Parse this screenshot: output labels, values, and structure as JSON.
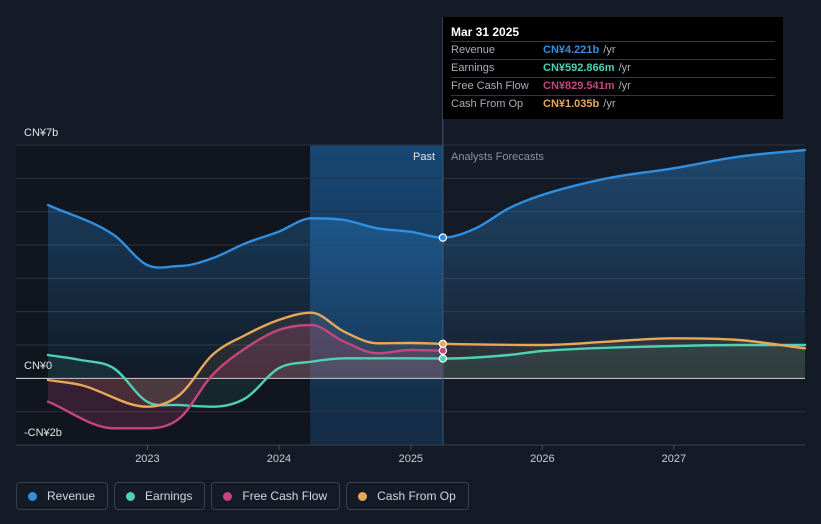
{
  "chart_data": {
    "type": "line",
    "y_axis": {
      "top_label": "CN¥7b",
      "zero_label": "CN¥0",
      "bottom_label": "-CN¥2b",
      "ylim": [
        -2,
        7
      ]
    },
    "x_axis": {
      "tick_labels": [
        "2023",
        "2024",
        "2025",
        "2026",
        "2027"
      ],
      "xlim": [
        "2022-03-31",
        "2027-12-31"
      ]
    },
    "grid": true,
    "divider": {
      "date": "2025-03-31",
      "past_label": "Past",
      "forecast_label": "Analysts Forecasts"
    },
    "series": [
      {
        "name": "Revenue",
        "color": "#2f8fe0",
        "points": [
          [
            "2022-03-31",
            5.2
          ],
          [
            "2022-09-30",
            4.3
          ],
          [
            "2022-12-31",
            3.4
          ],
          [
            "2023-03-31",
            3.37
          ],
          [
            "2023-06-30",
            3.6
          ],
          [
            "2023-09-30",
            4.05
          ],
          [
            "2023-12-31",
            4.4
          ],
          [
            "2024-03-31",
            4.8
          ],
          [
            "2024-06-30",
            4.75
          ],
          [
            "2024-09-30",
            4.5
          ],
          [
            "2024-12-31",
            4.4
          ],
          [
            "2025-03-31",
            4.221
          ],
          [
            "2025-06-30",
            4.5
          ],
          [
            "2025-09-30",
            5.1
          ],
          [
            "2025-12-31",
            5.5
          ],
          [
            "2026-06-30",
            6.0
          ],
          [
            "2026-12-31",
            6.3
          ],
          [
            "2027-06-30",
            6.65
          ],
          [
            "2027-12-31",
            6.85
          ]
        ]
      },
      {
        "name": "Earnings",
        "color": "#4fd1b5",
        "points": [
          [
            "2022-03-31",
            0.7
          ],
          [
            "2022-06-30",
            0.55
          ],
          [
            "2022-09-30",
            0.3
          ],
          [
            "2022-12-31",
            -0.7
          ],
          [
            "2023-03-31",
            -0.8
          ],
          [
            "2023-06-30",
            -0.85
          ],
          [
            "2023-09-30",
            -0.6
          ],
          [
            "2023-12-31",
            0.3
          ],
          [
            "2024-03-31",
            0.5
          ],
          [
            "2024-06-30",
            0.6
          ],
          [
            "2024-12-31",
            0.6
          ],
          [
            "2025-03-31",
            0.593
          ],
          [
            "2025-09-30",
            0.7
          ],
          [
            "2025-12-31",
            0.82
          ],
          [
            "2026-12-31",
            0.97
          ],
          [
            "2027-06-30",
            1.0
          ],
          [
            "2027-12-31",
            1.0
          ]
        ]
      },
      {
        "name": "Free Cash Flow",
        "color": "#c5457f",
        "points": [
          [
            "2022-03-31",
            -0.7
          ],
          [
            "2022-09-30",
            -1.5
          ],
          [
            "2022-12-31",
            -1.5
          ],
          [
            "2023-03-31",
            -1.2
          ],
          [
            "2023-06-30",
            0.1
          ],
          [
            "2023-09-30",
            0.9
          ],
          [
            "2023-12-31",
            1.45
          ],
          [
            "2024-03-31",
            1.6
          ],
          [
            "2024-06-30",
            1.1
          ],
          [
            "2024-09-30",
            0.75
          ],
          [
            "2024-12-31",
            0.85
          ],
          [
            "2025-03-31",
            0.83
          ]
        ]
      },
      {
        "name": "Cash From Op",
        "color": "#e8a85a",
        "points": [
          [
            "2022-03-31",
            -0.05
          ],
          [
            "2022-06-30",
            -0.2
          ],
          [
            "2022-12-31",
            -0.85
          ],
          [
            "2023-03-31",
            -0.5
          ],
          [
            "2023-06-30",
            0.7
          ],
          [
            "2023-09-30",
            1.3
          ],
          [
            "2023-12-31",
            1.75
          ],
          [
            "2024-03-31",
            1.97
          ],
          [
            "2024-06-30",
            1.4
          ],
          [
            "2024-09-30",
            1.05
          ],
          [
            "2024-12-31",
            1.06
          ],
          [
            "2025-03-31",
            1.035
          ],
          [
            "2025-12-31",
            1.0
          ],
          [
            "2026-06-30",
            1.1
          ],
          [
            "2026-12-31",
            1.2
          ],
          [
            "2027-06-30",
            1.15
          ],
          [
            "2027-12-31",
            0.9
          ]
        ]
      }
    ]
  },
  "tooltip": {
    "date": "Mar 31 2025",
    "rows": [
      {
        "label": "Revenue",
        "value": "CN¥4.221b",
        "unit": "/yr",
        "color": "#2f8fe0"
      },
      {
        "label": "Earnings",
        "value": "CN¥592.866m",
        "unit": "/yr",
        "color": "#4fd1b5"
      },
      {
        "label": "Free Cash Flow",
        "value": "CN¥829.541m",
        "unit": "/yr",
        "color": "#c5457f"
      },
      {
        "label": "Cash From Op",
        "value": "CN¥1.035b",
        "unit": "/yr",
        "color": "#e8a85a"
      }
    ]
  },
  "legend": [
    {
      "label": "Revenue",
      "color": "#2f8fe0"
    },
    {
      "label": "Earnings",
      "color": "#4fd1b5"
    },
    {
      "label": "Free Cash Flow",
      "color": "#c5457f"
    },
    {
      "label": "Cash From Op",
      "color": "#e8a85a"
    }
  ]
}
